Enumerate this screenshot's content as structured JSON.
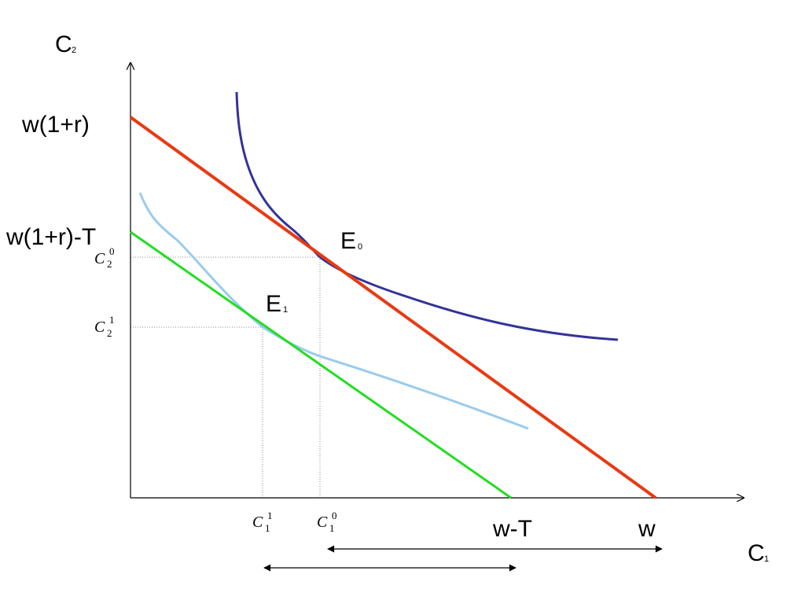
{
  "axes": {
    "y_label": "C",
    "y_label_sub": "2",
    "x_label": "C",
    "x_label_sub": "1"
  },
  "y_ticks": {
    "top": "w(1+r)",
    "lower": "w(1+r)-T",
    "c20_base": "C",
    "c20_sub": "2",
    "c20_sup": "0",
    "c21_base": "C",
    "c21_sub": "2",
    "c21_sup": "1"
  },
  "x_ticks": {
    "c11_base": "C",
    "c11_sub": "1",
    "c11_sup": "1",
    "c10_base": "C",
    "c10_sub": "1",
    "c10_sup": "0",
    "wt": "w-T",
    "w": "w"
  },
  "points": {
    "e0": "E",
    "e0_sub": "0",
    "e1": "E",
    "e1_sub": "1"
  },
  "colors": {
    "budget_original": "#e83a12",
    "budget_taxed": "#22dd22",
    "indifference_high": "#333399",
    "indifference_low": "#99ccee",
    "axis": "#000000",
    "guide": "#888888"
  }
}
